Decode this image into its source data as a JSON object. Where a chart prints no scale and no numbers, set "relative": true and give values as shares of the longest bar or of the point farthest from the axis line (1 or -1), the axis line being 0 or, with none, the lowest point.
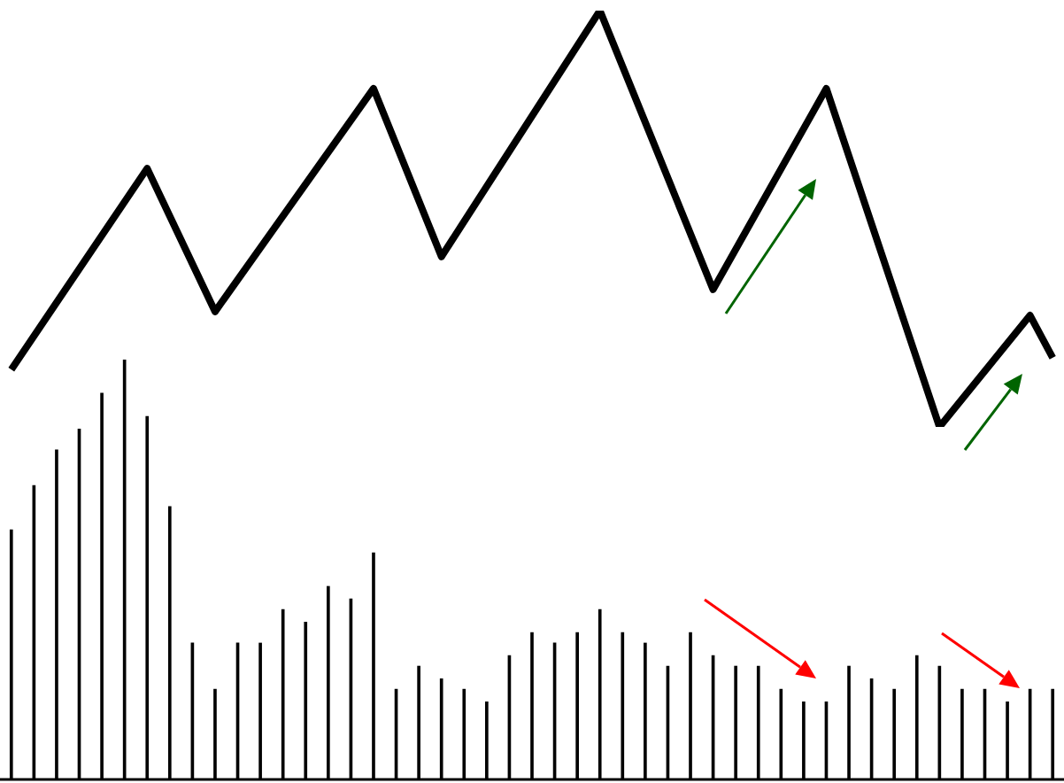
{
  "chart_data": [
    {
      "type": "line",
      "relative": true,
      "tick_labels": false,
      "marker": "none",
      "color": "#000000",
      "categories": [
        null,
        null,
        null,
        null,
        null,
        null,
        null,
        null,
        null,
        null,
        null,
        null,
        null,
        null,
        null,
        null,
        null,
        null,
        null,
        null,
        null,
        null,
        null,
        null,
        null,
        null,
        null,
        null,
        null,
        null,
        null,
        null,
        null,
        null,
        null,
        null,
        null,
        null,
        null,
        null,
        null,
        null,
        null,
        null,
        null,
        null,
        null
      ],
      "values": [
        0.138,
        null,
        null,
        null,
        null,
        null,
        0.621,
        null,
        null,
        0.277,
        null,
        null,
        null,
        null,
        null,
        null,
        0.813,
        null,
        null,
        0.409,
        null,
        null,
        null,
        null,
        null,
        null,
        1,
        null,
        null,
        null,
        null,
        0.33,
        null,
        null,
        null,
        null,
        0.813,
        null,
        null,
        null,
        null,
        0,
        null,
        null,
        null,
        0.268,
        0.166
      ]
    },
    {
      "type": "bar",
      "relative": true,
      "tick_labels": false,
      "color": "#000000",
      "categories": [
        null,
        null,
        null,
        null,
        null,
        null,
        null,
        null,
        null,
        null,
        null,
        null,
        null,
        null,
        null,
        null,
        null,
        null,
        null,
        null,
        null,
        null,
        null,
        null,
        null,
        null,
        null,
        null,
        null,
        null,
        null,
        null,
        null,
        null,
        null,
        null,
        null,
        null,
        null,
        null,
        null,
        null,
        null,
        null,
        null,
        null,
        null
      ],
      "values": [
        0.595,
        0.7,
        0.785,
        0.835,
        0.92,
        1,
        0.865,
        0.65,
        0.325,
        0.215,
        0.325,
        0.325,
        0.405,
        0.375,
        0.46,
        0.43,
        0.54,
        0.215,
        0.27,
        0.24,
        0.215,
        0.185,
        0.295,
        0.35,
        0.325,
        0.35,
        0.405,
        0.35,
        0.325,
        0.27,
        0.35,
        0.295,
        0.27,
        0.27,
        0.215,
        0.185,
        0.185,
        0.27,
        0.24,
        0.215,
        0.295,
        0.27,
        0.215,
        0.215,
        0.185,
        0.215,
        0.215
      ]
    }
  ]
}
